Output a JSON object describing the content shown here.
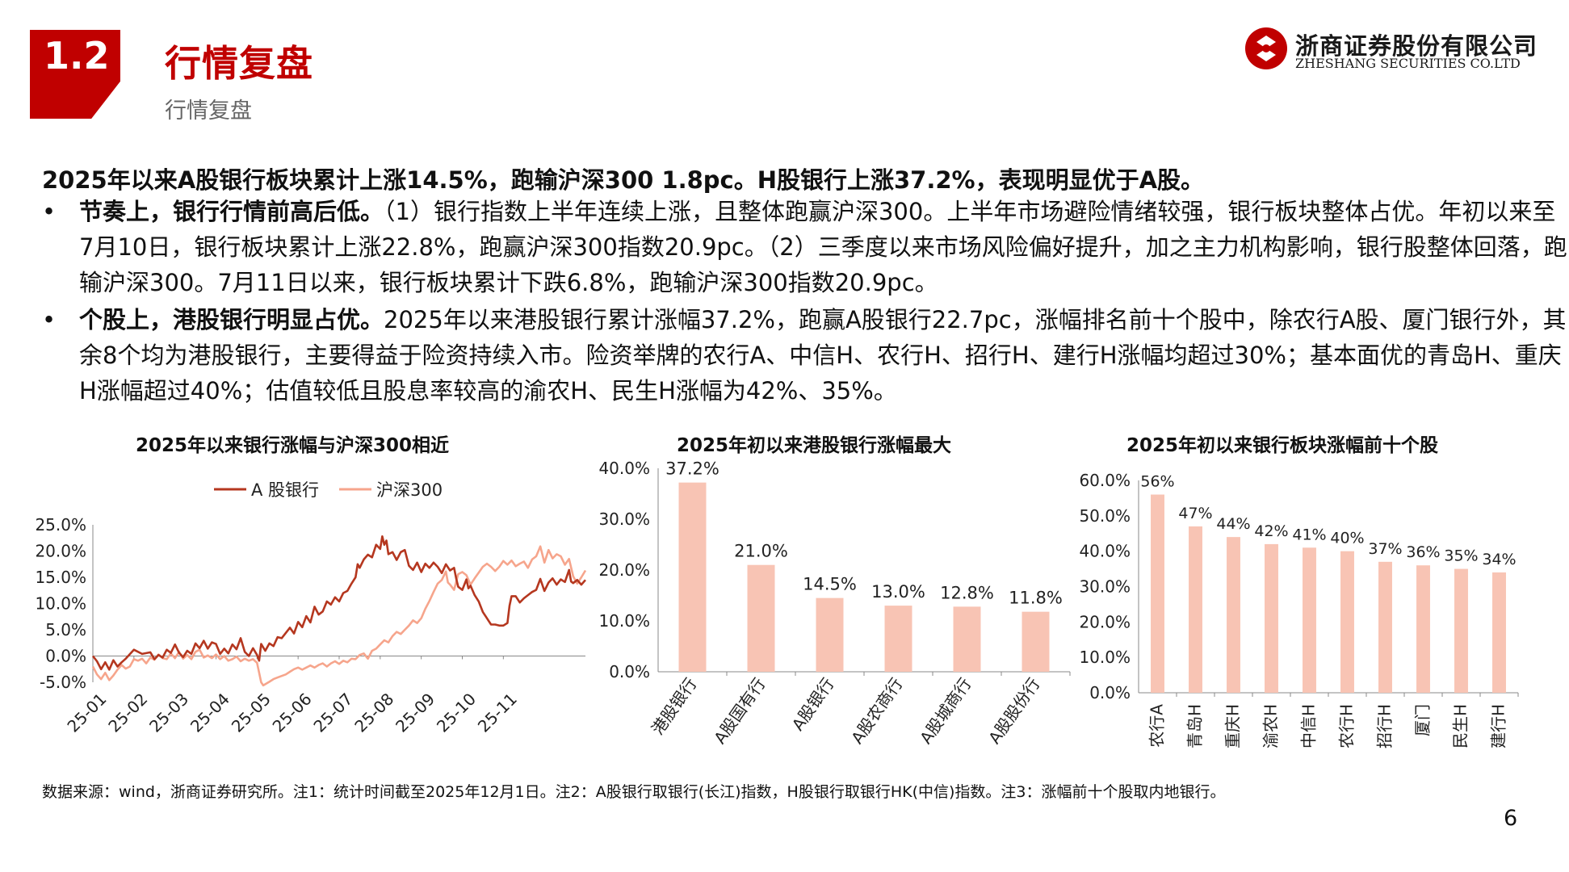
{
  "header": {
    "section_number": "1.2",
    "title": "行情复盘",
    "subtitle": "行情复盘",
    "logo_cn": "浙商证券股份有限公司",
    "logo_en": "ZHESHANG SECURITIES CO.LTD",
    "brand_color": "#c00000"
  },
  "headline": "2025年以来A股银行板块累计上涨14.5%，跑输沪深300 1.8pc。H股银行上涨37.2%，表现明显优于A股。",
  "bullets": [
    {
      "bold": "节奏上，银行行情前高后低。",
      "text": "（1）银行指数上半年连续上涨，且整体跑赢沪深300。上半年市场避险情绪较强，银行板块整体占优。年初以来至7月10日，银行板块累计上涨22.8%，跑赢沪深300指数20.9pc。（2）三季度以来市场风险偏好提升，加之主力机构影响，银行股整体回落，跑输沪深300。7月11日以来，银行板块累计下跌6.8%，跑输沪深300指数20.9pc。"
    },
    {
      "bold": "个股上，港股银行明显占优。",
      "text": "2025年以来港股银行累计涨幅37.2%，跑赢A股银行22.7pc，涨幅排名前十个股中，除农行A股、厦门银行外，其余8个均为港股银行，主要得益于险资持续入市。险资举牌的农行A、中信H、农行H、招行H、建行H涨幅均超过30%；基本面优的青岛H、重庆H涨幅超过40%；估值较低且股息率较高的渝农H、民生H涨幅为42%、35%。"
    }
  ],
  "chart_data": [
    {
      "type": "line",
      "title": "2025年以来银行涨幅与沪深300相近",
      "x_tick_labels": [
        "25-01",
        "25-02",
        "25-03",
        "25-04",
        "25-05",
        "25-06",
        "25-07",
        "25-08",
        "25-09",
        "25-10",
        "25-11"
      ],
      "x_range": [
        "25-01",
        "25-12"
      ],
      "y_tick_labels": [
        "25.0%",
        "20.0%",
        "15.0%",
        "10.0%",
        "5.0%",
        "0.0%",
        "-5.0%"
      ],
      "ylim": [
        -5,
        25
      ],
      "grid": false,
      "legend_position": "top",
      "series": [
        {
          "name": "A 股银行",
          "color": "#b5371f",
          "points": [
            [
              0,
              0
            ],
            [
              0.1,
              -1
            ],
            [
              0.2,
              -2.5
            ],
            [
              0.3,
              -1.2
            ],
            [
              0.4,
              -2.6
            ],
            [
              0.5,
              -0.8
            ],
            [
              0.6,
              -2
            ],
            [
              0.7,
              -1.2
            ],
            [
              0.8,
              -0.5
            ],
            [
              1.0,
              1.2
            ],
            [
              1.2,
              0.4
            ],
            [
              1.4,
              0.7
            ],
            [
              1.5,
              -0.6
            ],
            [
              1.6,
              0.2
            ],
            [
              1.7,
              -0.3
            ],
            [
              1.8,
              1.2
            ],
            [
              1.9,
              0.6
            ],
            [
              2.0,
              2.2
            ],
            [
              2.1,
              0.6
            ],
            [
              2.2,
              -0.2
            ],
            [
              2.3,
              1.0
            ],
            [
              2.4,
              0.4
            ],
            [
              2.5,
              2.4
            ],
            [
              2.6,
              1.5
            ],
            [
              2.7,
              2.9
            ],
            [
              2.8,
              1.4
            ],
            [
              2.9,
              2.6
            ],
            [
              3.0,
              2.3
            ],
            [
              3.1,
              0.4
            ],
            [
              3.2,
              1.4
            ],
            [
              3.3,
              0.5
            ],
            [
              3.4,
              2.2
            ],
            [
              3.5,
              1.3
            ],
            [
              3.6,
              3.4
            ],
            [
              3.7,
              0.8
            ],
            [
              3.8,
              0.0
            ],
            [
              3.9,
              1.5
            ],
            [
              4.0,
              0.2
            ],
            [
              4.05,
              -0.9
            ],
            [
              4.1,
              2.3
            ],
            [
              4.2,
              1.0
            ],
            [
              4.3,
              2.4
            ],
            [
              4.4,
              1.9
            ],
            [
              4.5,
              3.6
            ],
            [
              4.6,
              3.4
            ],
            [
              4.7,
              4.4
            ],
            [
              4.8,
              5.4
            ],
            [
              4.9,
              4.3
            ],
            [
              5.0,
              6.5
            ],
            [
              5.1,
              5.5
            ],
            [
              5.2,
              7.6
            ],
            [
              5.3,
              6.4
            ],
            [
              5.4,
              9.4
            ],
            [
              5.5,
              7.9
            ],
            [
              5.6,
              8.5
            ],
            [
              5.7,
              10.4
            ],
            [
              5.8,
              9.8
            ],
            [
              5.9,
              11.2
            ],
            [
              6.0,
              10.4
            ],
            [
              6.1,
              12.0
            ],
            [
              6.2,
              12.4
            ],
            [
              6.3,
              13.8
            ],
            [
              6.4,
              15.0
            ],
            [
              6.45,
              17.5
            ],
            [
              6.5,
              16.8
            ],
            [
              6.6,
              18.4
            ],
            [
              6.7,
              19.3
            ],
            [
              6.8,
              18.8
            ],
            [
              6.9,
              21.2
            ],
            [
              7.0,
              20.4
            ],
            [
              7.05,
              22.8
            ],
            [
              7.1,
              21.2
            ],
            [
              7.15,
              22.0
            ],
            [
              7.2,
              19.4
            ],
            [
              7.3,
              19.8
            ],
            [
              7.4,
              18.3
            ],
            [
              7.5,
              19.8
            ],
            [
              7.6,
              20.2
            ],
            [
              7.7,
              17.2
            ],
            [
              7.8,
              16.4
            ],
            [
              7.9,
              17.8
            ],
            [
              8.0,
              16.0
            ],
            [
              8.1,
              17.6
            ],
            [
              8.2,
              16.8
            ],
            [
              8.3,
              17.8
            ],
            [
              8.4,
              17.0
            ],
            [
              8.5,
              15.8
            ],
            [
              8.6,
              17.5
            ],
            [
              8.7,
              16.3
            ],
            [
              8.8,
              16.8
            ],
            [
              8.85,
              14.8
            ],
            [
              8.9,
              13.2
            ],
            [
              9.0,
              12.6
            ],
            [
              9.1,
              14.6
            ],
            [
              9.15,
              12.9
            ],
            [
              9.2,
              13.4
            ],
            [
              9.3,
              11.6
            ],
            [
              9.4,
              10.4
            ],
            [
              9.5,
              8.4
            ],
            [
              9.6,
              7.2
            ],
            [
              9.65,
              6.6
            ],
            [
              9.7,
              6.0
            ],
            [
              9.8,
              6.0
            ],
            [
              9.9,
              5.8
            ],
            [
              10.0,
              5.8
            ],
            [
              10.1,
              6.3
            ],
            [
              10.15,
              9.6
            ],
            [
              10.2,
              11.4
            ],
            [
              10.3,
              11.4
            ],
            [
              10.4,
              10.2
            ],
            [
              10.5,
              11.0
            ],
            [
              10.6,
              11.6
            ],
            [
              10.7,
              12.2
            ],
            [
              10.8,
              12.6
            ],
            [
              10.9,
              14.7
            ],
            [
              11.0,
              12.4
            ],
            [
              11.1,
              14.0
            ],
            [
              11.2,
              14.8
            ],
            [
              11.3,
              13.6
            ],
            [
              11.4,
              14.6
            ],
            [
              11.5,
              14.1
            ],
            [
              11.6,
              16.4
            ],
            [
              11.65,
              14.2
            ],
            [
              11.7,
              13.9
            ],
            [
              11.8,
              14.5
            ],
            [
              11.9,
              13.6
            ],
            [
              12.0,
              14.5
            ]
          ]
        },
        {
          "name": "沪深300",
          "color": "#f6a58c",
          "points": [
            [
              0,
              -2.0
            ],
            [
              0.1,
              -3.5
            ],
            [
              0.2,
              -4.4
            ],
            [
              0.3,
              -3.2
            ],
            [
              0.4,
              -4.6
            ],
            [
              0.5,
              -3.7
            ],
            [
              0.6,
              -2.6
            ],
            [
              0.7,
              -1.7
            ],
            [
              0.8,
              -2.4
            ],
            [
              0.9,
              -2.0
            ],
            [
              1.0,
              -0.6
            ],
            [
              1.1,
              -0.9
            ],
            [
              1.2,
              -0.5
            ],
            [
              1.3,
              -1.4
            ],
            [
              1.4,
              -0.3
            ],
            [
              1.5,
              -0.7
            ],
            [
              1.6,
              0.3
            ],
            [
              1.7,
              -0.4
            ],
            [
              1.8,
              -0.6
            ],
            [
              1.9,
              0.5
            ],
            [
              2.0,
              -0.4
            ],
            [
              2.1,
              0.8
            ],
            [
              2.2,
              -0.5
            ],
            [
              2.3,
              0.2
            ],
            [
              2.4,
              -0.6
            ],
            [
              2.5,
              0.8
            ],
            [
              2.6,
              1.2
            ],
            [
              2.7,
              -0.3
            ],
            [
              2.8,
              0.1
            ],
            [
              2.9,
              -0.4
            ],
            [
              3.0,
              0.3
            ],
            [
              3.1,
              -0.6
            ],
            [
              3.2,
              0.0
            ],
            [
              3.3,
              -0.9
            ],
            [
              3.4,
              -0.6
            ],
            [
              3.5,
              -0.1
            ],
            [
              3.6,
              -1.0
            ],
            [
              3.7,
              -0.5
            ],
            [
              3.8,
              -0.9
            ],
            [
              3.9,
              -0.6
            ],
            [
              4.0,
              -1.3
            ],
            [
              4.1,
              -5.0
            ],
            [
              4.15,
              -5.6
            ],
            [
              4.3,
              -4.9
            ],
            [
              4.4,
              -4.4
            ],
            [
              4.5,
              -4.1
            ],
            [
              4.6,
              -3.8
            ],
            [
              4.7,
              -3.5
            ],
            [
              4.8,
              -3.0
            ],
            [
              4.9,
              -2.5
            ],
            [
              5.0,
              -2.2
            ],
            [
              5.1,
              -2.6
            ],
            [
              5.2,
              -2.2
            ],
            [
              5.3,
              -1.8
            ],
            [
              5.4,
              -2.2
            ],
            [
              5.5,
              -1.7
            ],
            [
              5.6,
              -1.4
            ],
            [
              5.7,
              -2.0
            ],
            [
              5.8,
              -1.4
            ],
            [
              5.9,
              -1.0
            ],
            [
              6.0,
              -1.5
            ],
            [
              6.1,
              -0.9
            ],
            [
              6.2,
              -1.2
            ],
            [
              6.3,
              -0.5
            ],
            [
              6.4,
              -0.6
            ],
            [
              6.5,
              0.2
            ],
            [
              6.6,
              0.5
            ],
            [
              6.7,
              -0.5
            ],
            [
              6.8,
              1.0
            ],
            [
              6.9,
              1.4
            ],
            [
              7.0,
              2.2
            ],
            [
              7.1,
              3.0
            ],
            [
              7.2,
              2.6
            ],
            [
              7.3,
              3.8
            ],
            [
              7.4,
              4.6
            ],
            [
              7.5,
              4.2
            ],
            [
              7.6,
              5.0
            ],
            [
              7.7,
              5.8
            ],
            [
              7.8,
              6.8
            ],
            [
              7.9,
              6.3
            ],
            [
              8.0,
              7.2
            ],
            [
              8.1,
              9.0
            ],
            [
              8.2,
              10.5
            ],
            [
              8.3,
              12.2
            ],
            [
              8.4,
              13.8
            ],
            [
              8.5,
              14.5
            ],
            [
              8.6,
              16.1
            ],
            [
              8.65,
              14.0
            ],
            [
              8.7,
              13.6
            ],
            [
              8.8,
              12.6
            ],
            [
              8.9,
              15.6
            ],
            [
              9.0,
              16.0
            ],
            [
              9.1,
              15.4
            ],
            [
              9.2,
              13.6
            ],
            [
              9.3,
              14.8
            ],
            [
              9.4,
              15.9
            ],
            [
              9.5,
              17.0
            ],
            [
              9.6,
              17.6
            ],
            [
              9.7,
              17.0
            ],
            [
              9.8,
              16.2
            ],
            [
              9.9,
              17.0
            ],
            [
              10.0,
              18.1
            ],
            [
              10.1,
              17.4
            ],
            [
              10.2,
              18.2
            ],
            [
              10.3,
              17.1
            ],
            [
              10.4,
              17.6
            ],
            [
              10.5,
              18.0
            ],
            [
              10.6,
              16.8
            ],
            [
              10.7,
              18.4
            ],
            [
              10.8,
              19.0
            ],
            [
              10.9,
              20.9
            ],
            [
              11.0,
              17.8
            ],
            [
              11.1,
              20.2
            ],
            [
              11.2,
              18.6
            ],
            [
              11.3,
              19.4
            ],
            [
              11.4,
              19.0
            ],
            [
              11.5,
              17.4
            ],
            [
              11.6,
              18.5
            ],
            [
              11.7,
              15.2
            ],
            [
              11.8,
              13.8
            ],
            [
              11.9,
              15.0
            ],
            [
              12.0,
              16.3
            ]
          ]
        }
      ]
    },
    {
      "type": "bar",
      "title": "2025年初以来港股银行涨幅最大",
      "categories": [
        "港股银行",
        "A股国有行",
        "A股银行",
        "A股农商行",
        "A股城商行",
        "A股股份行"
      ],
      "values": [
        37.2,
        21.0,
        14.5,
        13.0,
        12.8,
        11.8
      ],
      "data_labels": [
        "37.2%",
        "21.0%",
        "14.5%",
        "13.0%",
        "12.8%",
        "11.8%"
      ],
      "y_tick_labels": [
        "40.0%",
        "30.0%",
        "20.0%",
        "10.0%",
        "0.0%"
      ],
      "ylim": [
        0,
        40
      ],
      "bar_color": "#f8c4b4",
      "grid": false
    },
    {
      "type": "bar",
      "title": "2025年初以来银行板块涨幅前十个股",
      "categories": [
        "农行A",
        "青岛H",
        "重庆H",
        "渝农H",
        "中信H",
        "农行H",
        "招行H",
        "厦门",
        "民生H",
        "建行H"
      ],
      "values": [
        56,
        47,
        44,
        42,
        41,
        40,
        37,
        36,
        35,
        34
      ],
      "data_labels": [
        "56%",
        "47%",
        "44%",
        "42%",
        "41%",
        "40%",
        "37%",
        "36%",
        "35%",
        "34%"
      ],
      "y_tick_labels": [
        "60.0%",
        "50.0%",
        "40.0%",
        "30.0%",
        "20.0%",
        "10.0%",
        "0.0%"
      ],
      "ylim": [
        0,
        60
      ],
      "bar_color": "#f8c4b4",
      "grid": false
    }
  ],
  "footnote": "数据来源：wind，浙商证券研究所。注1：统计时间截至2025年12月1日。注2：A股银行取银行(长江)指数，H股银行取银行HK(中信)指数。注3：涨幅前十个股取内地银行。",
  "page_number": "6"
}
